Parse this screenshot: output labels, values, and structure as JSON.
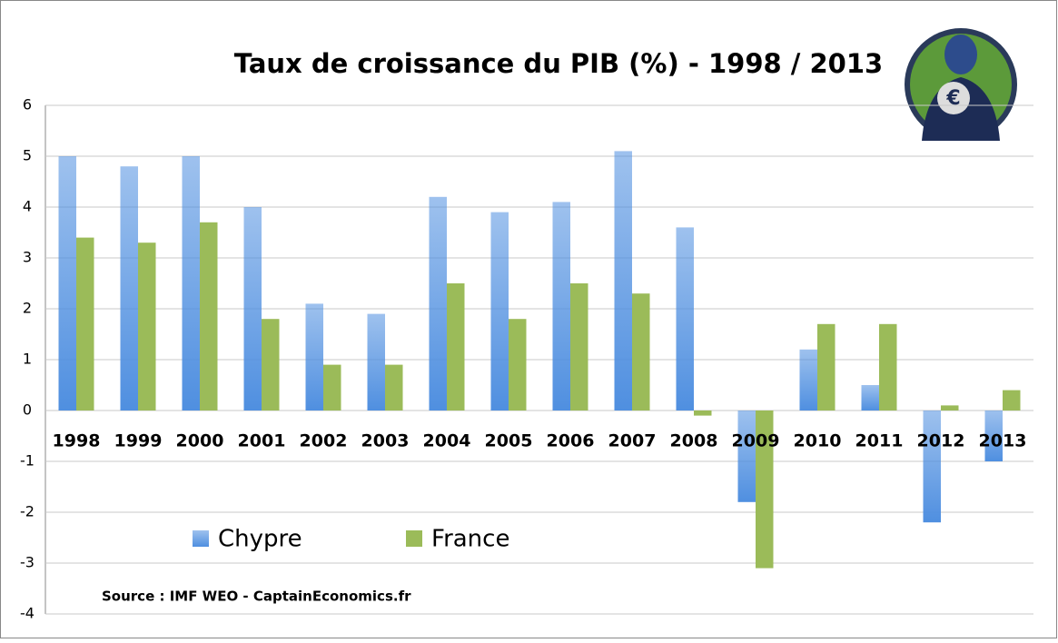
{
  "chart_data": {
    "type": "bar",
    "title": "Taux de croissance du PIB (%)  - 1998 / 2013",
    "categories": [
      "1998",
      "1999",
      "2000",
      "2001",
      "2002",
      "2003",
      "2004",
      "2005",
      "2006",
      "2007",
      "2008",
      "2009",
      "2010",
      "2011",
      "2012",
      "2013"
    ],
    "series": [
      {
        "name": "Chypre",
        "color": "#4f8fe0",
        "values": [
          5.0,
          4.8,
          5.0,
          4.0,
          2.1,
          1.9,
          4.2,
          3.9,
          4.1,
          5.1,
          3.6,
          -1.8,
          1.2,
          0.5,
          -2.2,
          -1.0
        ]
      },
      {
        "name": "France",
        "color": "#9bbb59",
        "values": [
          3.4,
          3.3,
          3.7,
          1.8,
          0.9,
          0.9,
          2.5,
          1.8,
          2.5,
          2.3,
          -0.1,
          -3.1,
          1.7,
          1.7,
          0.1,
          0.4
        ]
      }
    ],
    "ylim": [
      -4,
      6
    ],
    "yticks": [
      -4,
      -3,
      -2,
      -1,
      0,
      1,
      2,
      3,
      4,
      5,
      6
    ],
    "grid": true,
    "annotation": "Source : IMF WEO - CaptainEconomics.fr"
  }
}
